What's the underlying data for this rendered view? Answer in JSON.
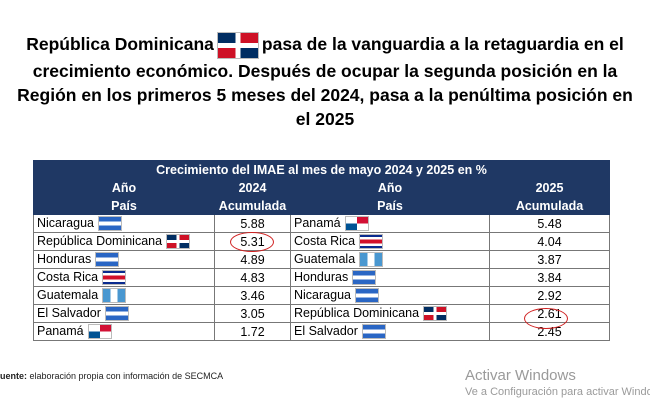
{
  "title_before": "República Dominicana",
  "title_after": "pasa de la vanguardia a la retaguardia en el crecimiento económico. Después de ocupar la segunda posición en la Región en los primeros 5 meses del 2024, pasa a la penúltima posición en el 2025",
  "table": {
    "caption": "Crecimiento del IMAE al mes de mayo 2024 y 2025 en %",
    "header_rows": [
      [
        "Año",
        "2024",
        "Año",
        "2025"
      ],
      [
        "País",
        "Acumulada",
        "País",
        "Acumulada"
      ]
    ],
    "rows": [
      [
        "Nicaragua",
        "5.88",
        "Panamá",
        "5.48"
      ],
      [
        "República Dominicana",
        "5.31",
        "Costa Rica",
        "4.04"
      ],
      [
        "Honduras",
        "4.89",
        "Guatemala",
        "3.87"
      ],
      [
        "Costa Rica",
        "4.83",
        "Honduras",
        "3.84"
      ],
      [
        "Guatemala",
        "3.46",
        "Nicaragua",
        "2.92"
      ],
      [
        "El Salvador",
        "3.05",
        "República Dominicana",
        "2.61"
      ],
      [
        "Panamá",
        "1.72",
        "El Salvador",
        "2.45"
      ]
    ]
  },
  "footer": {
    "label": "uente:",
    "text": "elaboración propia con información de SECMCA"
  },
  "watermark": {
    "title": "Activar Windows",
    "subtitle": "Ve a Configuración para activar Windo"
  }
}
